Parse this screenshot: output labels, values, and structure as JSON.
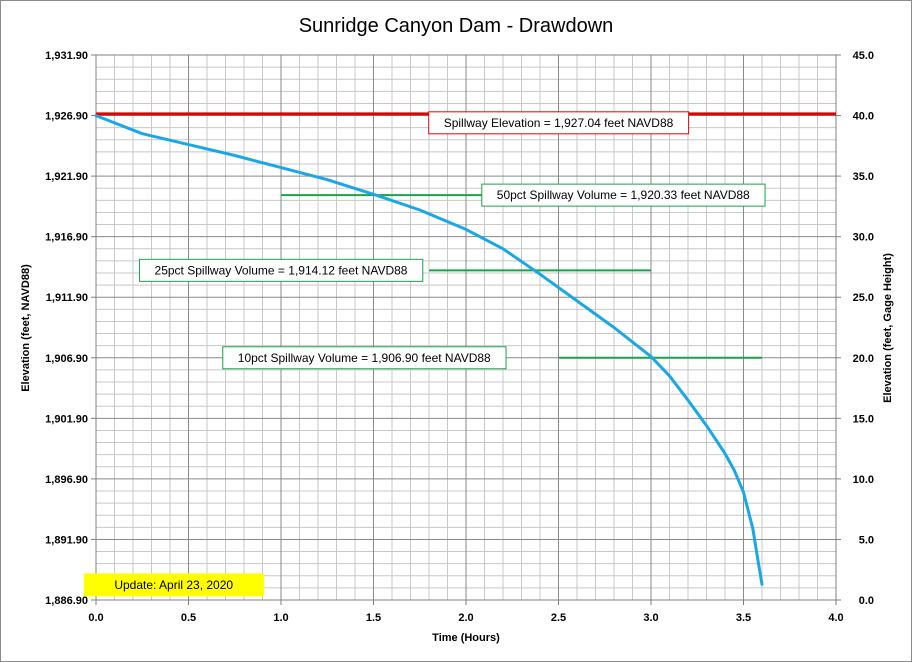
{
  "chart_data": {
    "type": "line",
    "title": "Sunridge Canyon Dam - Drawdown",
    "xlabel": "Time (Hours)",
    "ylabel_left": "Elevation (feet, NAVD88)",
    "ylabel_right": "Elevation (feet, Gage Height)",
    "xlim": [
      0.0,
      4.0
    ],
    "ylim_left": [
      1886.9,
      1931.9
    ],
    "ylim_right": [
      0.0,
      45.0
    ],
    "x_ticks": [
      "0.0",
      "0.5",
      "1.0",
      "1.5",
      "2.0",
      "2.5",
      "3.0",
      "3.5",
      "4.0"
    ],
    "y_ticks_left": [
      "1,886.90",
      "1,891.90",
      "1,896.90",
      "1,901.90",
      "1,906.90",
      "1,911.90",
      "1,916.90",
      "1,921.90",
      "1,926.90",
      "1,931.90"
    ],
    "y_ticks_right": [
      "0.0",
      "5.0",
      "10.0",
      "15.0",
      "20.0",
      "25.0",
      "30.0",
      "35.0",
      "40.0",
      "45.0"
    ],
    "grid": true,
    "series": [
      {
        "color": "#1aa7e6",
        "x": [
          0.0,
          0.25,
          0.5,
          0.75,
          1.0,
          1.25,
          1.5,
          1.75,
          2.0,
          2.2,
          2.4,
          2.6,
          2.8,
          3.0,
          3.1,
          3.2,
          3.3,
          3.4,
          3.45,
          3.5,
          3.55,
          3.58,
          3.6
        ],
        "y": [
          1926.9,
          1925.4,
          1924.5,
          1923.6,
          1922.6,
          1921.6,
          1920.4,
          1919.1,
          1917.5,
          1915.9,
          1913.8,
          1911.6,
          1909.4,
          1907.0,
          1905.4,
          1903.4,
          1901.3,
          1899.0,
          1897.6,
          1895.8,
          1892.8,
          1890.0,
          1888.2
        ]
      }
    ],
    "reference_lines": [
      {
        "label": "Spillway Elevation = 1,927.04  feet NAVD88",
        "y": 1927.04,
        "x_start": 0.0,
        "x_end": 4.0,
        "color": "#e60000",
        "text_x": 2.5,
        "text_y": 1926.3
      },
      {
        "label": "50pct Spillway Volume = 1,920.33  feet NAVD88",
        "y": 1920.33,
        "x_start": 1.0,
        "x_end": 3.0,
        "color": "#19a34a",
        "text_x": 2.85,
        "text_y": 1920.33
      },
      {
        "label": "25pct Spillway Volume = 1,914.12  feet NAVD88",
        "y": 1914.12,
        "x_start": 1.8,
        "x_end": 3.0,
        "color": "#19a34a",
        "text_x": 1.0,
        "text_y": 1914.12
      },
      {
        "label": "10pct Spillway Volume = 1,906.90  feet NAVD88",
        "y": 1906.9,
        "x_start": 2.5,
        "x_end": 3.6,
        "color": "#19a34a",
        "text_x": 1.45,
        "text_y": 1906.9
      }
    ],
    "note": {
      "label": "Update: April 23, 2020",
      "x": 0.42,
      "y": 1888.15,
      "background": "#ffff00"
    }
  }
}
